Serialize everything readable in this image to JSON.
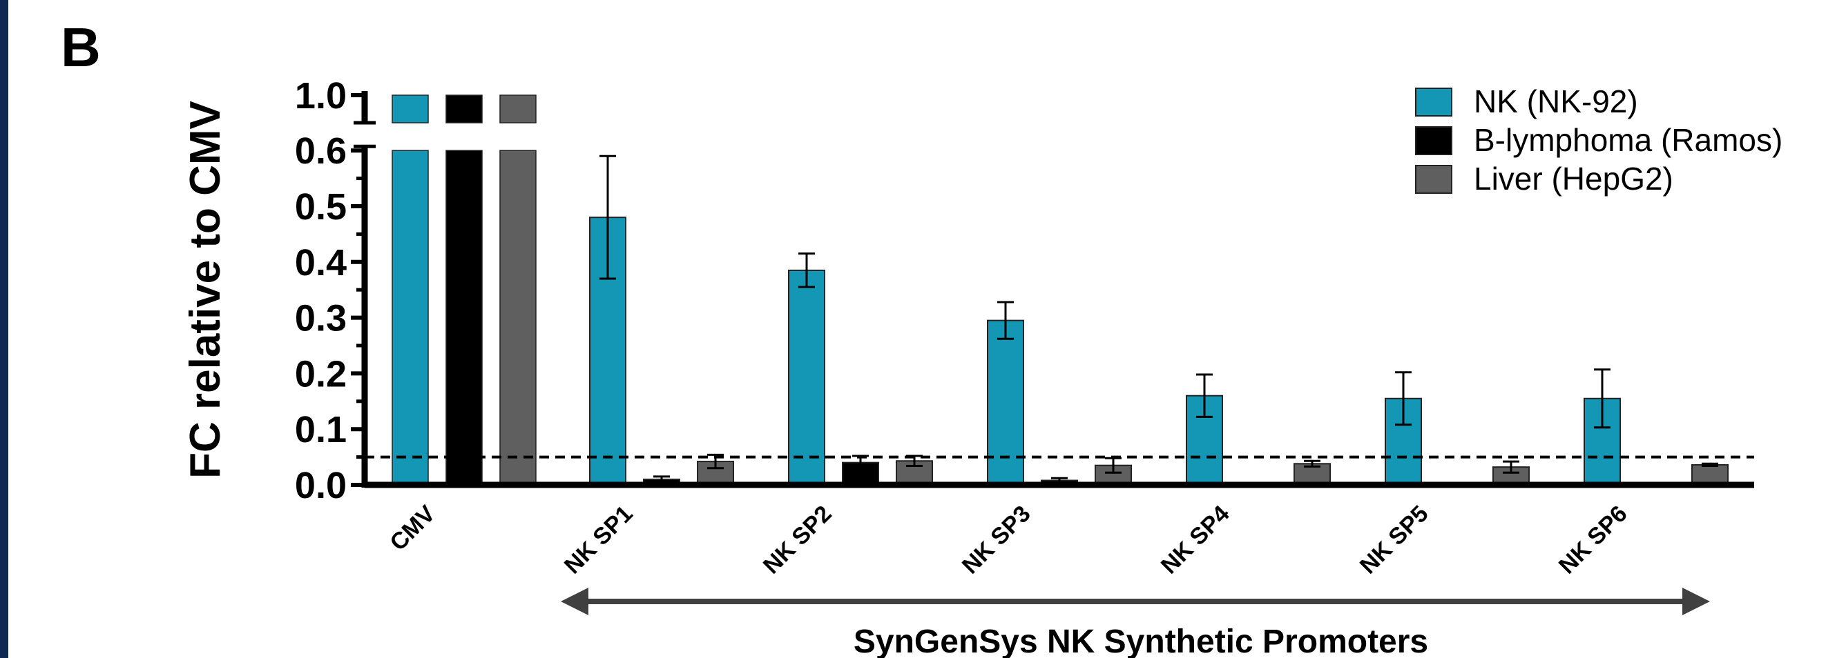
{
  "panel_label": "B",
  "chart_data": {
    "type": "bar",
    "title": "",
    "ylabel": "FC relative to CMV",
    "xlabel": "SynGenSys NK Synthetic Promoters",
    "categories": [
      "CMV",
      "NK SP1",
      "NK SP2",
      "NK SP3",
      "NK SP4",
      "NK SP5",
      "NK SP6"
    ],
    "y_axis": {
      "broken": true,
      "lower_range": [
        0,
        0.6
      ],
      "upper_range": [
        1.0,
        1.0
      ],
      "tick_labels": [
        "0.0",
        "0.1",
        "0.2",
        "0.3",
        "0.4",
        "0.5",
        "0.6",
        "1.0"
      ],
      "tick_values": [
        0,
        0.1,
        0.2,
        0.3,
        0.4,
        0.5,
        0.6,
        1.0
      ]
    },
    "threshold_line": 0.05,
    "series": [
      {
        "name": "NK (NK-92)",
        "color": "#1497b5",
        "values": [
          1.0,
          0.48,
          0.385,
          0.295,
          0.16,
          0.155,
          0.155
        ],
        "errors": [
          null,
          0.11,
          0.03,
          0.033,
          0.038,
          0.047,
          0.052
        ]
      },
      {
        "name": "B-lymphoma (Ramos)",
        "color": "#000000",
        "values": [
          1.0,
          0.01,
          0.04,
          0.008,
          0.0,
          0.0,
          0.0
        ],
        "errors": [
          null,
          0.005,
          0.012,
          0.004,
          null,
          null,
          null
        ]
      },
      {
        "name": "Liver (HepG2)",
        "color": "#5f5f5f",
        "values": [
          1.0,
          0.042,
          0.043,
          0.035,
          0.038,
          0.032,
          0.036
        ],
        "errors": [
          null,
          0.012,
          0.009,
          0.013,
          0.005,
          0.01,
          0.002
        ]
      }
    ],
    "legend_position": "top-right",
    "grid": false
  }
}
